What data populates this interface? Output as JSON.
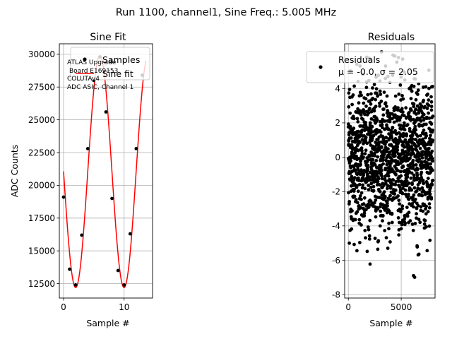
{
  "figure": {
    "suptitle": "Run 1100, channel1, Sine Freq.: 5.005 MHz"
  },
  "chart_data": [
    {
      "type": "scatter",
      "title": "Sine Fit",
      "xlabel": "Sample #",
      "ylabel": "ADC Counts",
      "xlim": [
        -0.7,
        14.7
      ],
      "ylim": [
        11400,
        30800
      ],
      "x_ticks": [
        0,
        10
      ],
      "y_ticks": [
        12500,
        15000,
        17500,
        20000,
        22500,
        25000,
        27500,
        30000
      ],
      "grid": true,
      "legend_placement": "top",
      "annotation": [
        "ATLAS Upgrade",
        "Board E169153",
        "COLUTAv4",
        "ADC ASIC, Channel 1"
      ],
      "series": [
        {
          "name": "Samples",
          "kind": "points",
          "color": "#000000",
          "x": [
            0,
            1,
            2,
            3,
            4,
            5,
            6,
            7,
            8,
            9,
            10,
            11,
            12,
            13
          ],
          "y": [
            19100,
            13600,
            12400,
            16200,
            22800,
            28000,
            29800,
            25600,
            19000,
            13500,
            12400,
            16300,
            22800,
            28400
          ]
        },
        {
          "name": "Sine fit",
          "kind": "line",
          "color": "#ff0000",
          "fit": {
            "offset": 21050,
            "amplitude": 8850,
            "period": 7.992,
            "phase_sample": 0.25
          }
        }
      ]
    },
    {
      "type": "scatter",
      "title": "Residuals",
      "xlabel": "Sample #",
      "ylabel": "",
      "xlim": [
        -350,
        8200
      ],
      "ylim": [
        -8.2,
        6.6
      ],
      "x_ticks": [
        0,
        5000
      ],
      "y_ticks": [
        -8,
        -6,
        -4,
        -2,
        0,
        2,
        4
      ],
      "grid": true,
      "legend_placement": "top-right",
      "series": [
        {
          "name": "Residuals",
          "label_stats": "μ = -0.0, σ = 2.05",
          "kind": "points",
          "color": "#000000",
          "n_points": 8000,
          "mean": 0.0,
          "std": 2.05,
          "min": -7.4,
          "max": 6.2
        }
      ]
    }
  ]
}
